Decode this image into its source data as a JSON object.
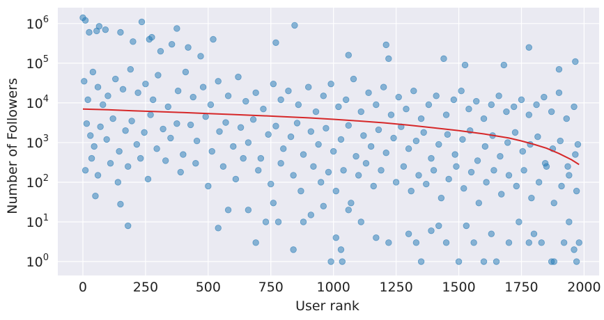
{
  "chart_data": {
    "type": "scatter",
    "title": "",
    "xlabel": "User rank",
    "ylabel": "Number of Followers",
    "xlim": [
      -100,
      2060
    ],
    "ylim_log10": [
      -0.35,
      6.4
    ],
    "y_scale": "log",
    "grid": true,
    "legend": "none",
    "x_ticks": [
      0,
      250,
      500,
      750,
      1000,
      1250,
      1500,
      1750,
      2000
    ],
    "y_ticks": [
      {
        "value": 1,
        "base": "10",
        "exp": "0"
      },
      {
        "value": 10,
        "base": "10",
        "exp": "1"
      },
      {
        "value": 100,
        "base": "10",
        "exp": "2"
      },
      {
        "value": 1000,
        "base": "10",
        "exp": "3"
      },
      {
        "value": 10000,
        "base": "10",
        "exp": "4"
      },
      {
        "value": 100000,
        "base": "10",
        "exp": "5"
      },
      {
        "value": 1000000,
        "base": "10",
        "exp": "6"
      }
    ],
    "series": [
      {
        "kind": "scatter",
        "color": "#1f77b4",
        "points": [
          [
            0,
            1400000
          ],
          [
            10,
            1200000
          ],
          [
            25,
            600000
          ],
          [
            55,
            650000
          ],
          [
            65,
            850000
          ],
          [
            90,
            700000
          ],
          [
            150,
            600000
          ],
          [
            200,
            350000
          ],
          [
            235,
            1100000
          ],
          [
            265,
            400000
          ],
          [
            275,
            450000
          ],
          [
            310,
            200000
          ],
          [
            355,
            300000
          ],
          [
            375,
            750000
          ],
          [
            420,
            250000
          ],
          [
            470,
            150000
          ],
          [
            520,
            400000
          ],
          [
            770,
            330000
          ],
          [
            845,
            900000
          ],
          [
            1060,
            160000
          ],
          [
            1210,
            290000
          ],
          [
            1220,
            130000
          ],
          [
            1440,
            130000
          ],
          [
            1525,
            90000
          ],
          [
            1680,
            90000
          ],
          [
            1780,
            250000
          ],
          [
            1900,
            70000
          ],
          [
            1965,
            110000
          ],
          [
            5,
            35000
          ],
          [
            20,
            12000
          ],
          [
            40,
            60000
          ],
          [
            60,
            25000
          ],
          [
            80,
            9000
          ],
          [
            100,
            15000
          ],
          [
            130,
            40000
          ],
          [
            160,
            22000
          ],
          [
            190,
            70000
          ],
          [
            220,
            18000
          ],
          [
            250,
            30000
          ],
          [
            280,
            12000
          ],
          [
            300,
            50000
          ],
          [
            340,
            8000
          ],
          [
            380,
            20000
          ],
          [
            410,
            60000
          ],
          [
            440,
            14000
          ],
          [
            480,
            25000
          ],
          [
            510,
            9000
          ],
          [
            540,
            35000
          ],
          [
            580,
            15000
          ],
          [
            620,
            45000
          ],
          [
            650,
            11000
          ],
          [
            690,
            18000
          ],
          [
            720,
            7000
          ],
          [
            760,
            30000
          ],
          [
            790,
            12000
          ],
          [
            820,
            20000
          ],
          [
            860,
            9000
          ],
          [
            900,
            25000
          ],
          [
            930,
            6000
          ],
          [
            960,
            15000
          ],
          [
            990,
            30000
          ],
          [
            1020,
            8000
          ],
          [
            1050,
            12000
          ],
          [
            1080,
            40000
          ],
          [
            1110,
            6000
          ],
          [
            1140,
            18000
          ],
          [
            1170,
            9000
          ],
          [
            1200,
            25000
          ],
          [
            1230,
            5000
          ],
          [
            1260,
            14000
          ],
          [
            1290,
            7000
          ],
          [
            1320,
            20000
          ],
          [
            1350,
            4000
          ],
          [
            1380,
            9000
          ],
          [
            1410,
            15000
          ],
          [
            1450,
            5000
          ],
          [
            1480,
            12000
          ],
          [
            1510,
            20000
          ],
          [
            1540,
            7000
          ],
          [
            1570,
            11000
          ],
          [
            1600,
            4000
          ],
          [
            1630,
            9000
          ],
          [
            1660,
            15000
          ],
          [
            1690,
            6000
          ],
          [
            1720,
            8000
          ],
          [
            1750,
            12000
          ],
          [
            1780,
            5000
          ],
          [
            1810,
            9000
          ],
          [
            1840,
            14000
          ],
          [
            1870,
            6000
          ],
          [
            1900,
            18000
          ],
          [
            1930,
            4000
          ],
          [
            1960,
            8000
          ],
          [
            15,
            3000
          ],
          [
            30,
            1500
          ],
          [
            45,
            800
          ],
          [
            70,
            2500
          ],
          [
            95,
            1200
          ],
          [
            120,
            4000
          ],
          [
            145,
            600
          ],
          [
            170,
            2000
          ],
          [
            195,
            3500
          ],
          [
            215,
            900
          ],
          [
            245,
            1800
          ],
          [
            270,
            5000
          ],
          [
            295,
            700
          ],
          [
            320,
            2200
          ],
          [
            350,
            1300
          ],
          [
            375,
            3000
          ],
          [
            400,
            500
          ],
          [
            430,
            2800
          ],
          [
            455,
            1100
          ],
          [
            490,
            4500
          ],
          [
            515,
            600
          ],
          [
            545,
            1900
          ],
          [
            570,
            3200
          ],
          [
            600,
            800
          ],
          [
            630,
            2400
          ],
          [
            660,
            1000
          ],
          [
            680,
            3800
          ],
          [
            710,
            400
          ],
          [
            740,
            1600
          ],
          [
            770,
            2600
          ],
          [
            800,
            700
          ],
          [
            830,
            1400
          ],
          [
            855,
            3100
          ],
          [
            880,
            500
          ],
          [
            910,
            1900
          ],
          [
            940,
            900
          ],
          [
            970,
            2300
          ],
          [
            1000,
            600
          ],
          [
            1030,
            1200
          ],
          [
            1060,
            2700
          ],
          [
            1090,
            450
          ],
          [
            1120,
            1500
          ],
          [
            1150,
            800
          ],
          [
            1180,
            2100
          ],
          [
            1210,
            550
          ],
          [
            1240,
            1300
          ],
          [
            1270,
            2500
          ],
          [
            1300,
            700
          ],
          [
            1330,
            1100
          ],
          [
            1360,
            1800
          ],
          [
            1390,
            400
          ],
          [
            1420,
            900
          ],
          [
            1455,
            1600
          ],
          [
            1485,
            500
          ],
          [
            1515,
            1200
          ],
          [
            1545,
            2000
          ],
          [
            1575,
            350
          ],
          [
            1605,
            800
          ],
          [
            1635,
            1500
          ],
          [
            1665,
            450
          ],
          [
            1695,
            1000
          ],
          [
            1725,
            1800
          ],
          [
            1755,
            600
          ],
          [
            1785,
            900
          ],
          [
            1815,
            1400
          ],
          [
            1845,
            300
          ],
          [
            1875,
            700
          ],
          [
            1905,
            1100
          ],
          [
            1935,
            250
          ],
          [
            1965,
            500
          ],
          [
            1975,
            900
          ],
          [
            10,
            200
          ],
          [
            35,
            400
          ],
          [
            60,
            150
          ],
          [
            110,
            300
          ],
          [
            140,
            100
          ],
          [
            180,
            250
          ],
          [
            230,
            400
          ],
          [
            260,
            120
          ],
          [
            330,
            350
          ],
          [
            390,
            180
          ],
          [
            450,
            300
          ],
          [
            500,
            80
          ],
          [
            560,
            250
          ],
          [
            610,
            120
          ],
          [
            640,
            400
          ],
          [
            700,
            200
          ],
          [
            750,
            90
          ],
          [
            790,
            300
          ],
          [
            840,
            150
          ],
          [
            870,
            60
          ],
          [
            920,
            250
          ],
          [
            950,
            100
          ],
          [
            980,
            180
          ],
          [
            1010,
            60
          ],
          [
            1040,
            200
          ],
          [
            1070,
            30
          ],
          [
            1100,
            150
          ],
          [
            1130,
            300
          ],
          [
            1160,
            80
          ],
          [
            1190,
            200
          ],
          [
            1250,
            100
          ],
          [
            1280,
            250
          ],
          [
            1310,
            60
          ],
          [
            1340,
            150
          ],
          [
            1370,
            90
          ],
          [
            1400,
            200
          ],
          [
            1430,
            40
          ],
          [
            1460,
            120
          ],
          [
            1490,
            250
          ],
          [
            1520,
            70
          ],
          [
            1550,
            180
          ],
          [
            1580,
            30
          ],
          [
            1610,
            100
          ],
          [
            1640,
            200
          ],
          [
            1670,
            50
          ],
          [
            1700,
            150
          ],
          [
            1730,
            80
          ],
          [
            1760,
            200
          ],
          [
            1790,
            40
          ],
          [
            1820,
            100
          ],
          [
            1850,
            250
          ],
          [
            1880,
            30
          ],
          [
            1910,
            80
          ],
          [
            1940,
            150
          ],
          [
            1970,
            60
          ],
          [
            50,
            45
          ],
          [
            150,
            28
          ],
          [
            180,
            8
          ],
          [
            540,
            7
          ],
          [
            580,
            20
          ],
          [
            660,
            20
          ],
          [
            690,
            3
          ],
          [
            730,
            10
          ],
          [
            760,
            30
          ],
          [
            780,
            10
          ],
          [
            840,
            2
          ],
          [
            880,
            10
          ],
          [
            910,
            15
          ],
          [
            960,
            25
          ],
          [
            990,
            1
          ],
          [
            1010,
            4
          ],
          [
            1030,
            2
          ],
          [
            1035,
            1
          ],
          [
            1060,
            20
          ],
          [
            1110,
            10
          ],
          [
            1170,
            4
          ],
          [
            1220,
            3
          ],
          [
            1300,
            5
          ],
          [
            1330,
            3
          ],
          [
            1350,
            1
          ],
          [
            1390,
            6
          ],
          [
            1420,
            8
          ],
          [
            1450,
            3
          ],
          [
            1500,
            1
          ],
          [
            1530,
            8
          ],
          [
            1560,
            3
          ],
          [
            1600,
            1
          ],
          [
            1630,
            5
          ],
          [
            1650,
            1
          ],
          [
            1700,
            3
          ],
          [
            1740,
            10
          ],
          [
            1780,
            3
          ],
          [
            1800,
            5
          ],
          [
            1830,
            3
          ],
          [
            1870,
            1
          ],
          [
            1880,
            1
          ],
          [
            1920,
            3
          ],
          [
            1940,
            10
          ],
          [
            1960,
            2
          ],
          [
            1970,
            1
          ],
          [
            1980,
            3
          ]
        ]
      },
      {
        "kind": "line",
        "color": "#d62728",
        "points": [
          [
            0,
            7000
          ],
          [
            100,
            6700
          ],
          [
            200,
            6300
          ],
          [
            300,
            6000
          ],
          [
            400,
            5700
          ],
          [
            500,
            5400
          ],
          [
            600,
            5100
          ],
          [
            700,
            4800
          ],
          [
            800,
            4500
          ],
          [
            900,
            4200
          ],
          [
            1000,
            3850
          ],
          [
            1100,
            3500
          ],
          [
            1200,
            3150
          ],
          [
            1300,
            2750
          ],
          [
            1400,
            2350
          ],
          [
            1500,
            2000
          ],
          [
            1600,
            1650
          ],
          [
            1700,
            1300
          ],
          [
            1750,
            1100
          ],
          [
            1800,
            900
          ],
          [
            1850,
            720
          ],
          [
            1900,
            530
          ],
          [
            1950,
            370
          ],
          [
            1980,
            280
          ]
        ]
      }
    ]
  }
}
